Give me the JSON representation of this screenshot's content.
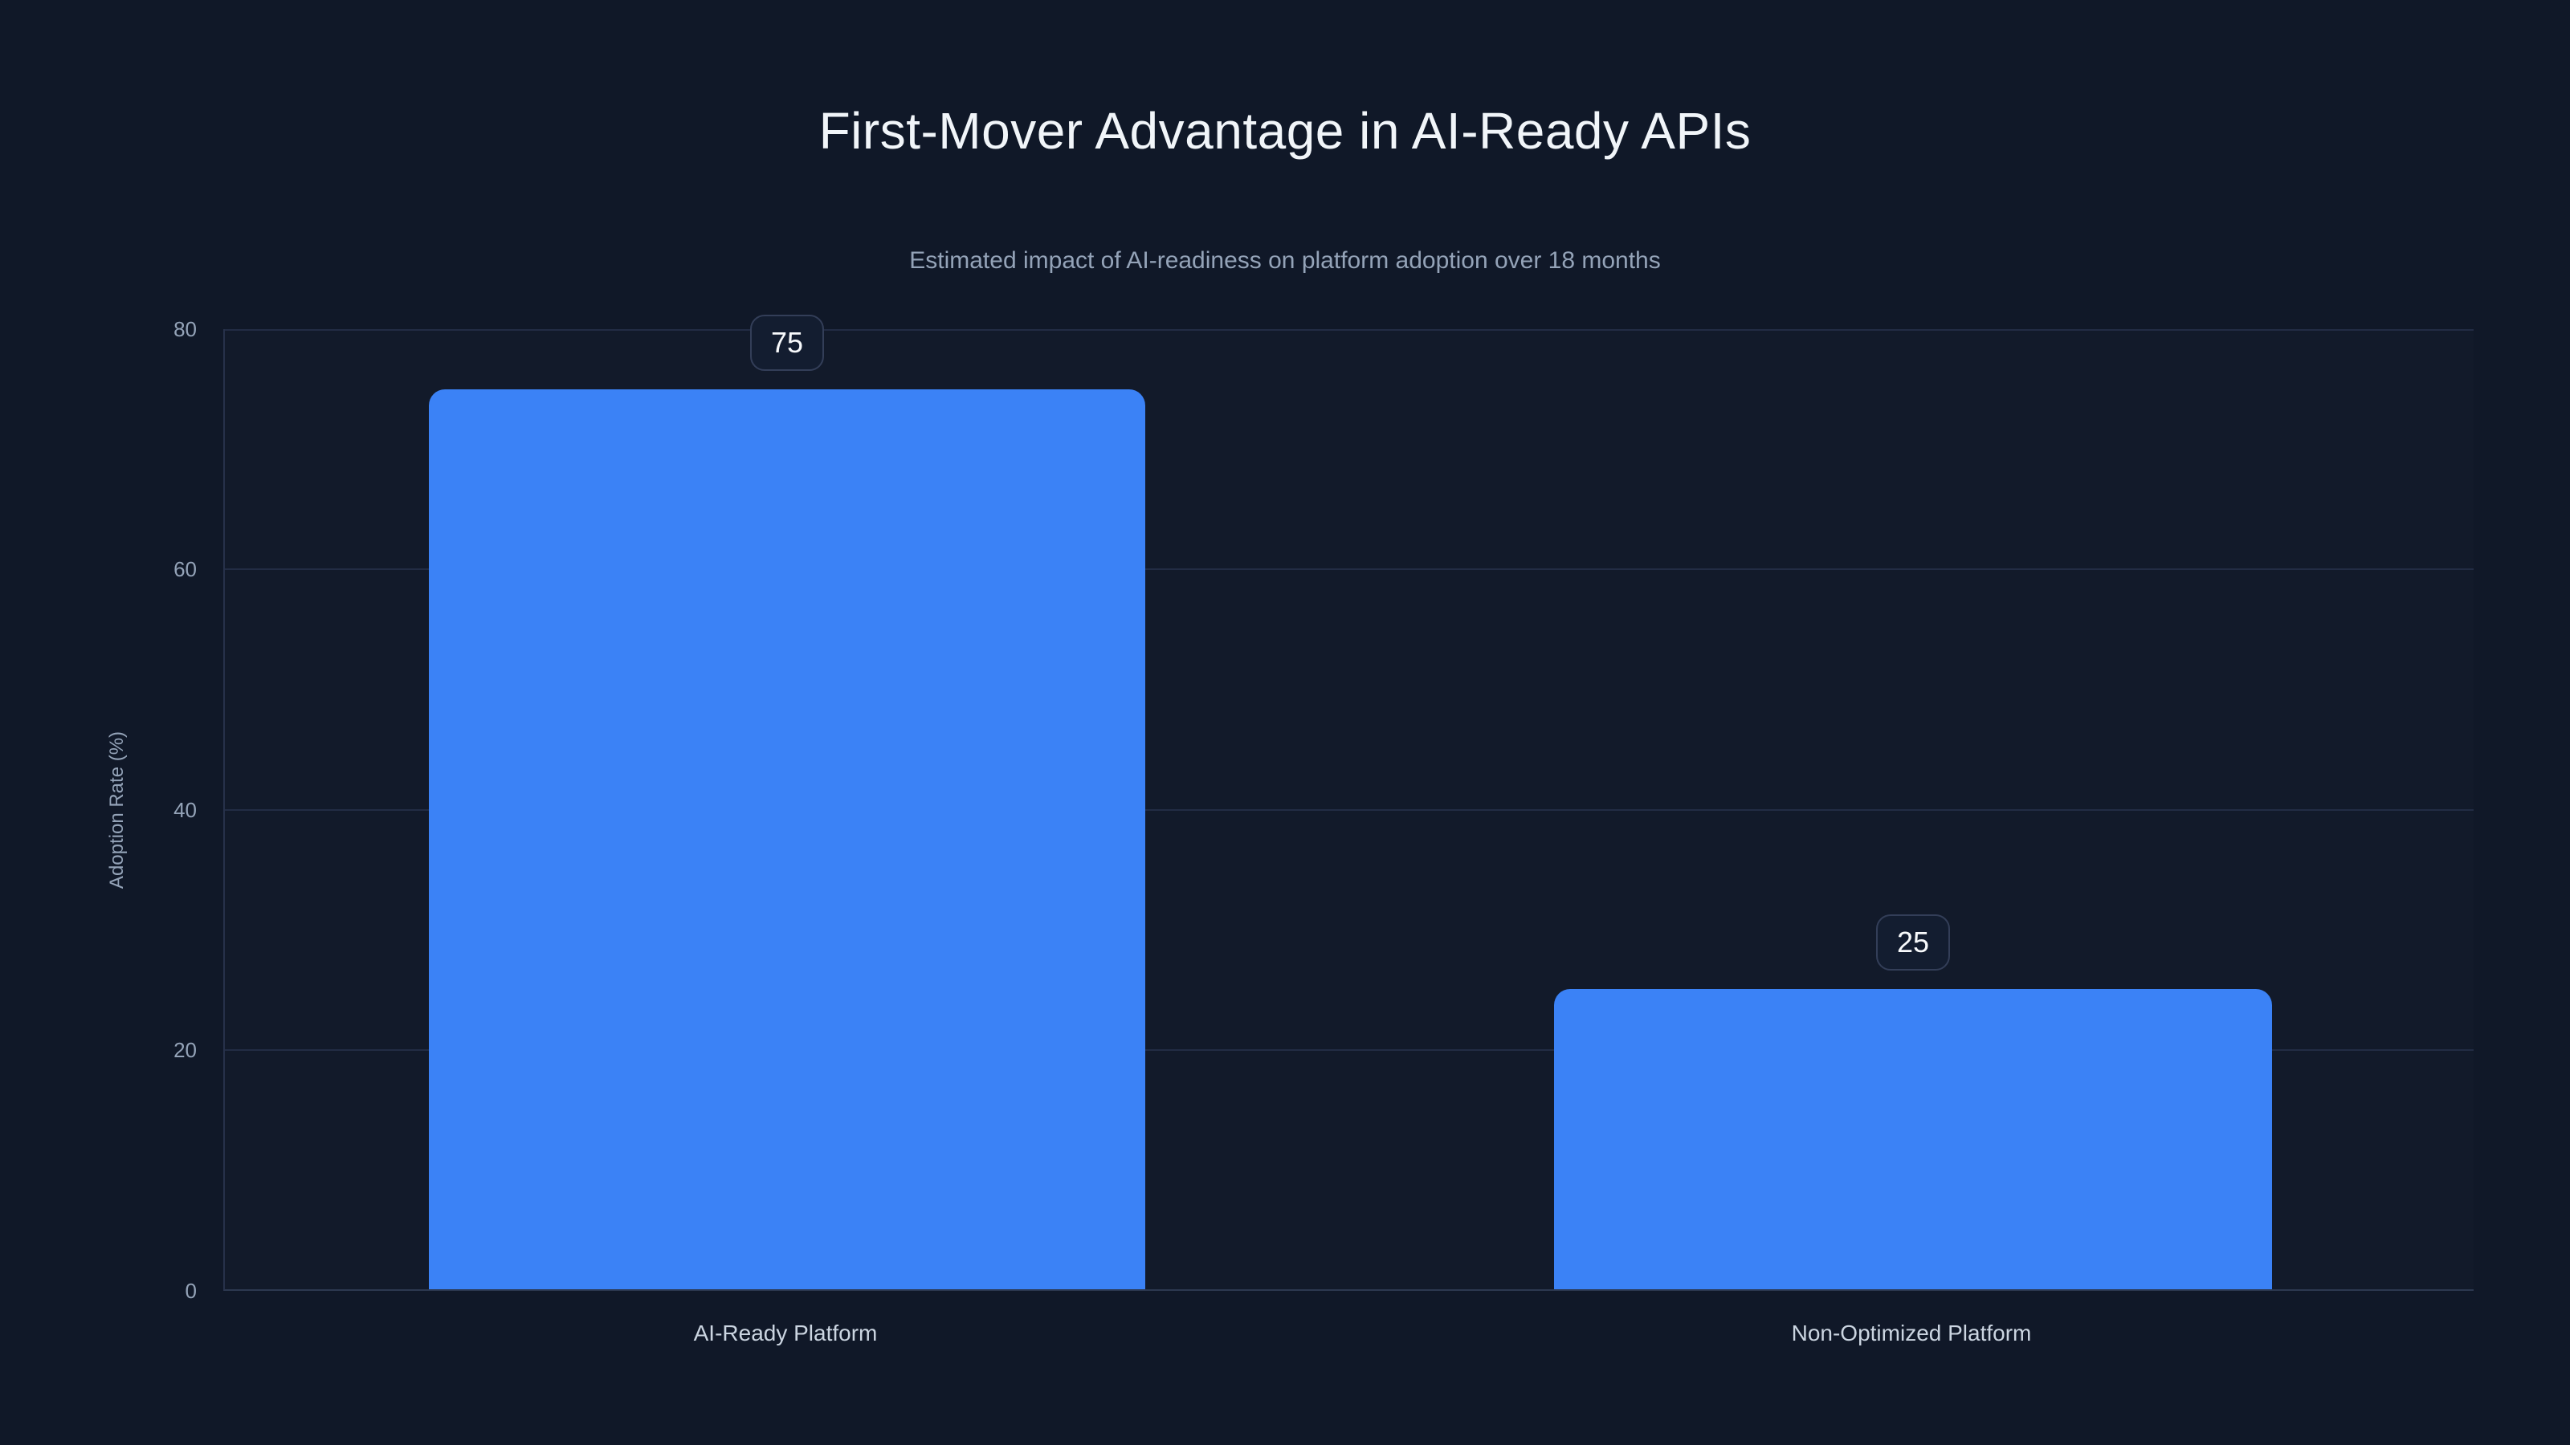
{
  "chart_data": {
    "type": "bar",
    "title": "First-Mover Advantage in AI-Ready APIs",
    "subtitle": "Estimated impact of AI-readiness on platform adoption over 18 months",
    "categories": [
      "AI-Ready Platform",
      "Non-Optimized Platform"
    ],
    "values": [
      75,
      25
    ],
    "value_labels": [
      "75",
      "25"
    ],
    "xlabel": "",
    "ylabel": "Adoption Rate (%)",
    "yticks": [
      "0",
      "20",
      "40",
      "60",
      "80"
    ],
    "ylim": [
      0,
      80
    ],
    "grid": true,
    "legend_position": "none",
    "bar_color": "#3b82f6",
    "colors": {
      "background": "#101828",
      "bar": "#3b82f6",
      "gridline": "#222c44",
      "title_text": "#f1f5f9",
      "subtitle_text": "#94a3b8",
      "tick_text": "#94a3b8",
      "category_text": "#cbd5e1",
      "badge_background": "#131d30",
      "badge_border": "#333e58",
      "badge_text": "#f8fafc"
    }
  }
}
